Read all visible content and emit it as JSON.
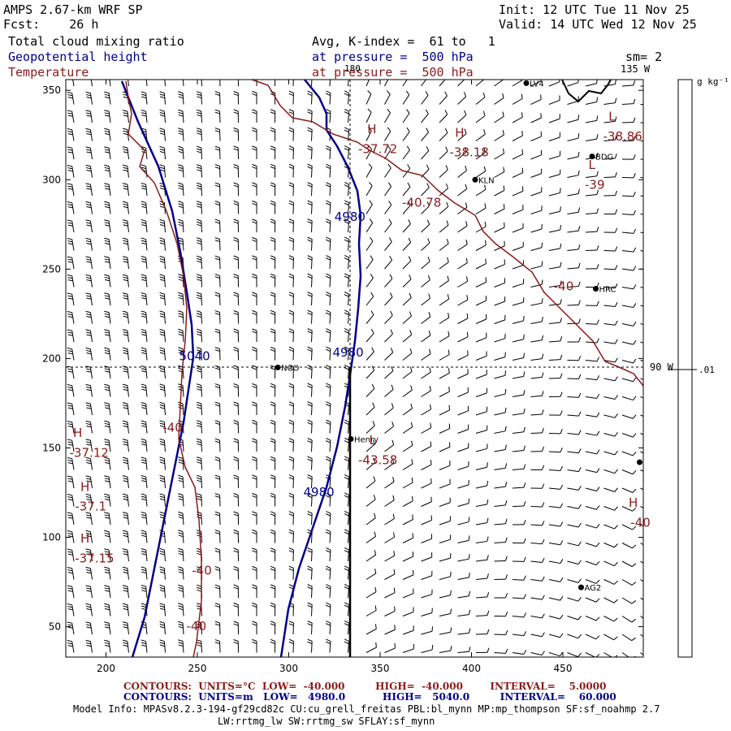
{
  "header": {
    "model": "AMPS 2.67-km WRF SP",
    "init": "Init: 12 UTC Tue 11 Nov 25",
    "fcst_label": "Fcst:",
    "fcst_value": "26 h",
    "valid": "Valid: 14 UTC Wed 12 Nov 25",
    "field1": "Total cloud mixing ratio",
    "field2": "Geopotential height",
    "field3": "Temperature",
    "avg": "Avg, K-index =  61 to   1",
    "pressure1": "at pressure =  500 hPa",
    "pressure2": "at pressure =  500 hPa",
    "sm": "sm= 2",
    "lon_top_180": "180",
    "lon_top_135": "135 W",
    "lon_right_90": "90 W",
    "colorbar_unit": "g kg⁻¹",
    "colorbar_value": ".01"
  },
  "colors": {
    "cloud": "#000000",
    "height": "#00008b",
    "temperature": "#8b1a1a",
    "footer_temp": "#8b1a1a",
    "footer_height": "#00008b"
  },
  "axes": {
    "x_ticks": [
      200,
      250,
      300,
      350,
      400,
      450
    ],
    "y_ticks": [
      50,
      100,
      150,
      200,
      250,
      300,
      350
    ],
    "x_range": [
      178,
      494
    ],
    "y_range": [
      33,
      356
    ]
  },
  "stations": [
    {
      "name": "LV4",
      "x": 430,
      "y": 354
    },
    {
      "name": "BDG",
      "x": 466,
      "y": 313
    },
    {
      "name": "KLN",
      "x": 402,
      "y": 300
    },
    {
      "name": "HRC",
      "x": 468,
      "y": 239
    },
    {
      "name": "NCO",
      "x": 294,
      "y": 195
    },
    {
      "name": "Henry",
      "x": 334,
      "y": 155
    },
    {
      "name": "AG2",
      "x": 460,
      "y": 72
    },
    {
      "name": "",
      "x": 492,
      "y": 142
    }
  ],
  "temperature_labels": [
    {
      "text": "H",
      "x": 343,
      "y": 326
    },
    {
      "text": "-37.72",
      "x": 338,
      "y": 315
    },
    {
      "text": "H",
      "x": 391,
      "y": 324
    },
    {
      "text": "-38.18",
      "x": 388,
      "y": 313
    },
    {
      "text": "L",
      "x": 475,
      "y": 333
    },
    {
      "text": "-38.86",
      "x": 472,
      "y": 322
    },
    {
      "text": "L",
      "x": 464,
      "y": 306
    },
    {
      "text": "-39",
      "x": 462,
      "y": 295
    },
    {
      "text": "-40.78",
      "x": 362,
      "y": 285
    },
    {
      "text": "-40",
      "x": 445,
      "y": 238
    },
    {
      "text": "-40",
      "x": 231,
      "y": 159
    },
    {
      "text": "L",
      "x": 344,
      "y": 152
    },
    {
      "text": "-43.58",
      "x": 338,
      "y": 141
    },
    {
      "text": "H",
      "x": 182,
      "y": 156
    },
    {
      "text": "-37.12",
      "x": 180,
      "y": 145
    },
    {
      "text": "H",
      "x": 186,
      "y": 126
    },
    {
      "text": "-37.1",
      "x": 183,
      "y": 115
    },
    {
      "text": "H",
      "x": 186,
      "y": 97
    },
    {
      "text": "-37.15",
      "x": 183,
      "y": 86
    },
    {
      "text": "-40",
      "x": 247,
      "y": 79
    },
    {
      "text": "-40",
      "x": 244,
      "y": 48
    },
    {
      "text": "H",
      "x": 486,
      "y": 117
    },
    {
      "text": "-40",
      "x": 487,
      "y": 106
    }
  ],
  "height_labels": [
    {
      "text": "4980",
      "x": 325,
      "y": 277
    },
    {
      "text": "4980",
      "x": 324,
      "y": 201
    },
    {
      "text": "5040",
      "x": 240,
      "y": 199
    },
    {
      "text": "4980",
      "x": 308,
      "y": 123
    }
  ],
  "footer": {
    "temp_line": "CONTOURS:  UNITS=°C  LOW=  -40.000         HIGH=  -40.000        INTERVAL=    5.0000",
    "height_line": "CONTOURS:  UNITS=m   LOW=   4980.0           HIGH=   5040.0         INTERVAL=    60.000",
    "model_info_1": "Model Info: MPASv8.2.3-194-gf29cd82c CU:cu_grell_freitas PBL:bl_mynn MP:mp_thompson SF:sf_noahmp 2.7",
    "model_info_2": "LW:rrtmg_lw SW:rrtmg_sw SFLAY:sf_mynn"
  }
}
